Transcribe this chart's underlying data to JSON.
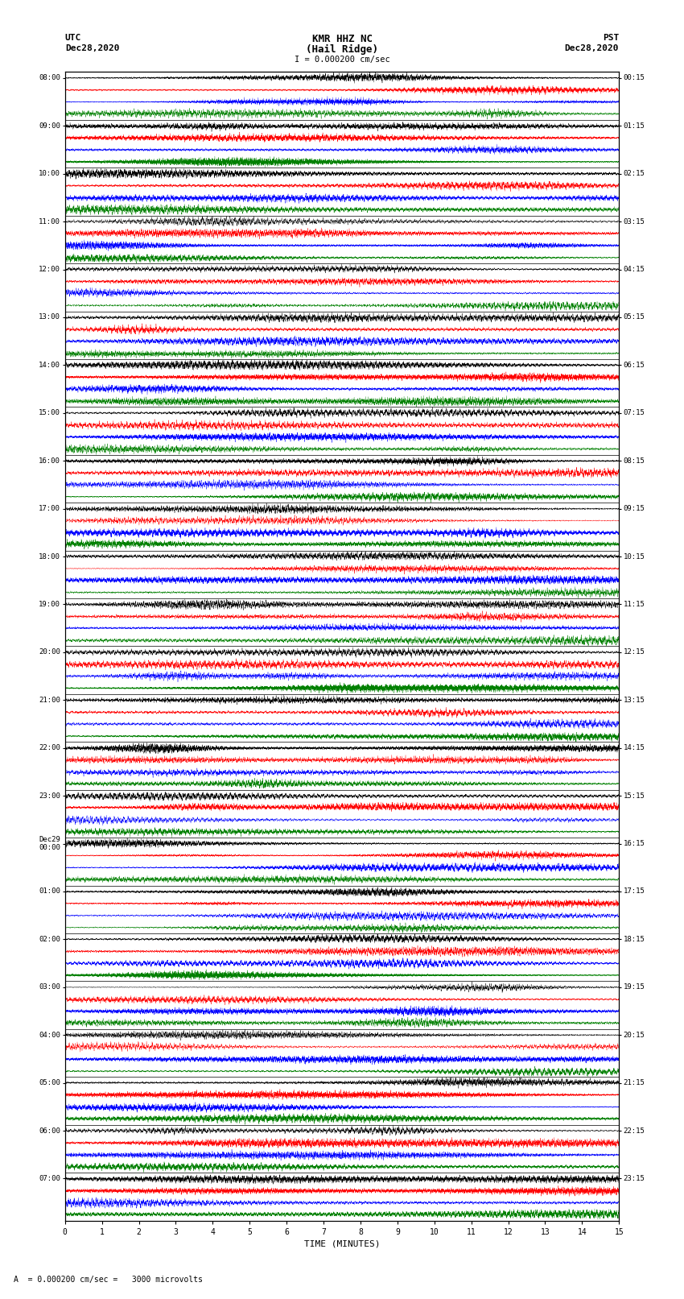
{
  "title_line1": "KMR HHZ NC",
  "title_line2": "(Hail Ridge)",
  "scale_text": "I = 0.000200 cm/sec",
  "left_header_line1": "UTC",
  "left_header_line2": "Dec28,2020",
  "right_header_line1": "PST",
  "right_header_line2": "Dec28,2020",
  "bottom_label": "TIME (MINUTES)",
  "bottom_note": "A  = 0.000200 cm/sec =   3000 microvolts",
  "left_times_utc": [
    "08:00",
    "09:00",
    "10:00",
    "11:00",
    "12:00",
    "13:00",
    "14:00",
    "15:00",
    "16:00",
    "17:00",
    "18:00",
    "19:00",
    "20:00",
    "21:00",
    "22:00",
    "23:00",
    "Dec29\n00:00",
    "01:00",
    "02:00",
    "03:00",
    "04:00",
    "05:00",
    "06:00",
    "07:00"
  ],
  "right_times_pst": [
    "00:15",
    "01:15",
    "02:15",
    "03:15",
    "04:15",
    "05:15",
    "06:15",
    "07:15",
    "08:15",
    "09:15",
    "10:15",
    "11:15",
    "12:15",
    "13:15",
    "14:15",
    "15:15",
    "16:15",
    "17:15",
    "18:15",
    "19:15",
    "20:15",
    "21:15",
    "22:15",
    "23:15"
  ],
  "row_colors": [
    "black",
    "red",
    "blue",
    "green"
  ],
  "bg_color": "white",
  "fig_width": 8.5,
  "fig_height": 16.13,
  "dpi": 100,
  "seed": 42,
  "num_hours": 24,
  "traces_per_hour": 4,
  "time_axis_max": 15,
  "time_ticks": [
    0,
    1,
    2,
    3,
    4,
    5,
    6,
    7,
    8,
    9,
    10,
    11,
    12,
    13,
    14,
    15
  ],
  "pts_per_row": 6000
}
